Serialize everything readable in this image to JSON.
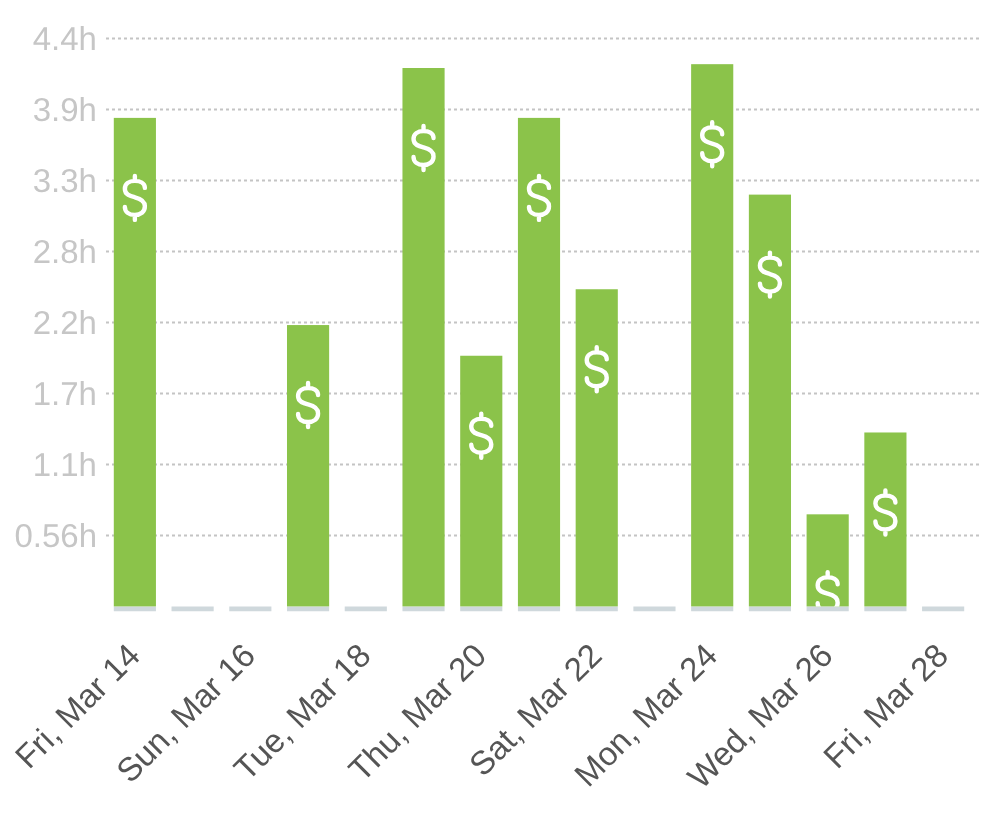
{
  "chart_data": {
    "type": "bar",
    "categories": [
      "Fri, Mar 14",
      null,
      "Sun, Mar 16",
      null,
      "Tue, Mar 18",
      null,
      "Thu, Mar 20",
      null,
      "Sat, Mar 22",
      null,
      "Mon, Mar 24",
      null,
      "Wed, Mar 26",
      null,
      "Fri, Mar 28"
    ],
    "values": [
      3.82,
      0,
      0,
      2.2,
      0,
      4.21,
      1.96,
      3.82,
      2.48,
      0,
      4.24,
      3.22,
      0.72,
      1.36,
      0
    ],
    "color": "#8bc34a",
    "ylim": [
      0,
      4.44
    ],
    "yticks": [
      {
        "value": 0.555,
        "label": "0.56h"
      },
      {
        "value": 1.11,
        "label": "1.1h"
      },
      {
        "value": 1.665,
        "label": "1.7h"
      },
      {
        "value": 2.22,
        "label": "2.2h"
      },
      {
        "value": 2.775,
        "label": "2.8h"
      },
      {
        "value": 3.33,
        "label": "3.3h"
      },
      {
        "value": 3.885,
        "label": "3.9h"
      },
      {
        "value": 4.44,
        "label": "4.4h"
      }
    ],
    "grid": "y"
  }
}
